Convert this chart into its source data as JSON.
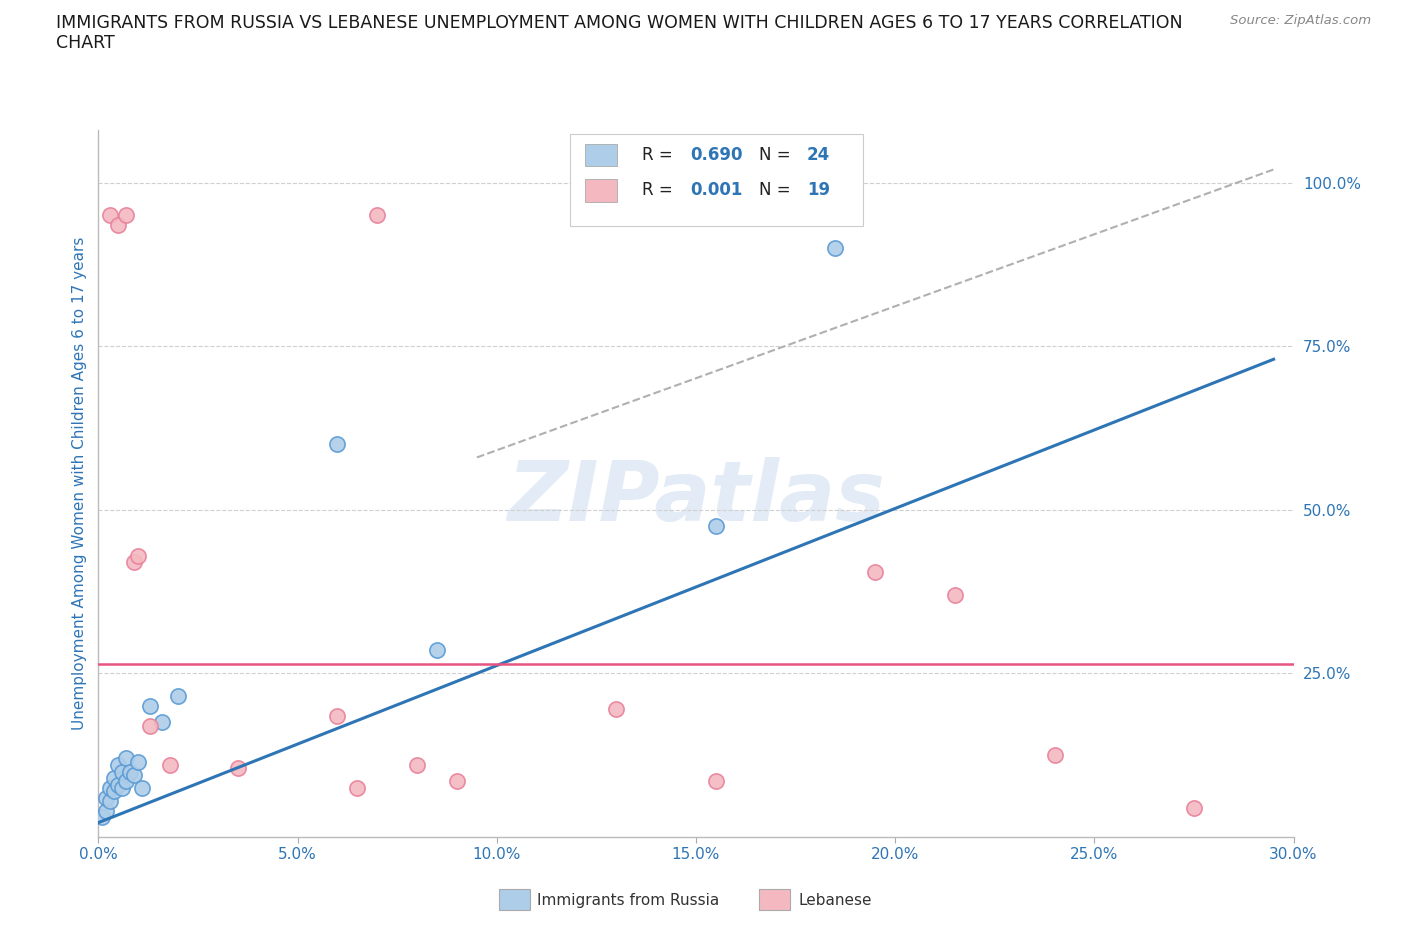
{
  "title_line1": "IMMIGRANTS FROM RUSSIA VS LEBANESE UNEMPLOYMENT AMONG WOMEN WITH CHILDREN AGES 6 TO 17 YEARS CORRELATION",
  "title_line2": "CHART",
  "source_text": "Source: ZipAtlas.com",
  "ylabel": "Unemployment Among Women with Children Ages 6 to 17 years",
  "xlim": [
    0.0,
    0.3
  ],
  "ylim": [
    0.0,
    1.08
  ],
  "xtick_labels": [
    "0.0%",
    "",
    "",
    "",
    "",
    "",
    "",
    "",
    "",
    "",
    "5.0%",
    "",
    "",
    "",
    "",
    "",
    "",
    "",
    "",
    "",
    "10.0%",
    "",
    "",
    "",
    "",
    "",
    "",
    "",
    "",
    "",
    "15.0%",
    "",
    "",
    "",
    "",
    "",
    "",
    "",
    "",
    "",
    "20.0%",
    "",
    "",
    "",
    "",
    "",
    "",
    "",
    "",
    "",
    "25.0%",
    "",
    "",
    "",
    "",
    "",
    "",
    "",
    "",
    "",
    "30.0%"
  ],
  "xtick_vals": [
    0.0,
    0.05,
    0.1,
    0.15,
    0.2,
    0.25,
    0.3
  ],
  "xtick_labels_short": [
    "0.0%",
    "5.0%",
    "10.0%",
    "15.0%",
    "20.0%",
    "25.0%",
    "30.0%"
  ],
  "ytick_right_labels": [
    "25.0%",
    "50.0%",
    "75.0%",
    "100.0%"
  ],
  "ytick_right_vals": [
    0.25,
    0.5,
    0.75,
    1.0
  ],
  "watermark": "ZIPatlas",
  "russia_fill": "#aecde8",
  "russia_edge": "#5b9bd5",
  "lebanese_fill": "#f4b8c1",
  "lebanese_edge": "#e8829a",
  "russia_line_color": "#2e75b6",
  "lebanese_line_color": "#e75480",
  "dashed_line_color": "#b0b0b0",
  "legend_russia_fill": "#aecde8",
  "legend_lebanese_fill": "#f4b8c1",
  "russia_R": "0.690",
  "russia_N": "24",
  "lebanese_R": "0.001",
  "lebanese_N": "19",
  "russia_dots_x": [
    0.001,
    0.002,
    0.002,
    0.003,
    0.003,
    0.004,
    0.004,
    0.005,
    0.005,
    0.006,
    0.006,
    0.007,
    0.007,
    0.008,
    0.009,
    0.01,
    0.011,
    0.013,
    0.016,
    0.02,
    0.06,
    0.085,
    0.155,
    0.185
  ],
  "russia_dots_y": [
    0.03,
    0.04,
    0.06,
    0.055,
    0.075,
    0.07,
    0.09,
    0.08,
    0.11,
    0.075,
    0.1,
    0.085,
    0.12,
    0.1,
    0.095,
    0.115,
    0.075,
    0.2,
    0.175,
    0.215,
    0.6,
    0.285,
    0.475,
    0.9
  ],
  "lebanese_dots_x": [
    0.003,
    0.005,
    0.007,
    0.009,
    0.01,
    0.013,
    0.018,
    0.035,
    0.06,
    0.065,
    0.07,
    0.08,
    0.09,
    0.13,
    0.155,
    0.195,
    0.215,
    0.24,
    0.275
  ],
  "lebanese_dots_y": [
    0.95,
    0.935,
    0.95,
    0.42,
    0.43,
    0.17,
    0.11,
    0.105,
    0.185,
    0.075,
    0.95,
    0.11,
    0.085,
    0.195,
    0.085,
    0.405,
    0.37,
    0.125,
    0.045
  ],
  "russia_line_x": [
    0.0,
    0.295
  ],
  "russia_line_y": [
    0.022,
    0.73
  ],
  "lebanese_line_y": 0.265,
  "dashed_line_x": [
    0.095,
    0.295
  ],
  "dashed_line_y": [
    0.58,
    1.02
  ],
  "background_color": "#ffffff",
  "grid_color": "#d0d0d0",
  "title_color": "#1a1a1a",
  "axis_label_color": "#2e75b6",
  "tick_label_color": "#2e75b6"
}
